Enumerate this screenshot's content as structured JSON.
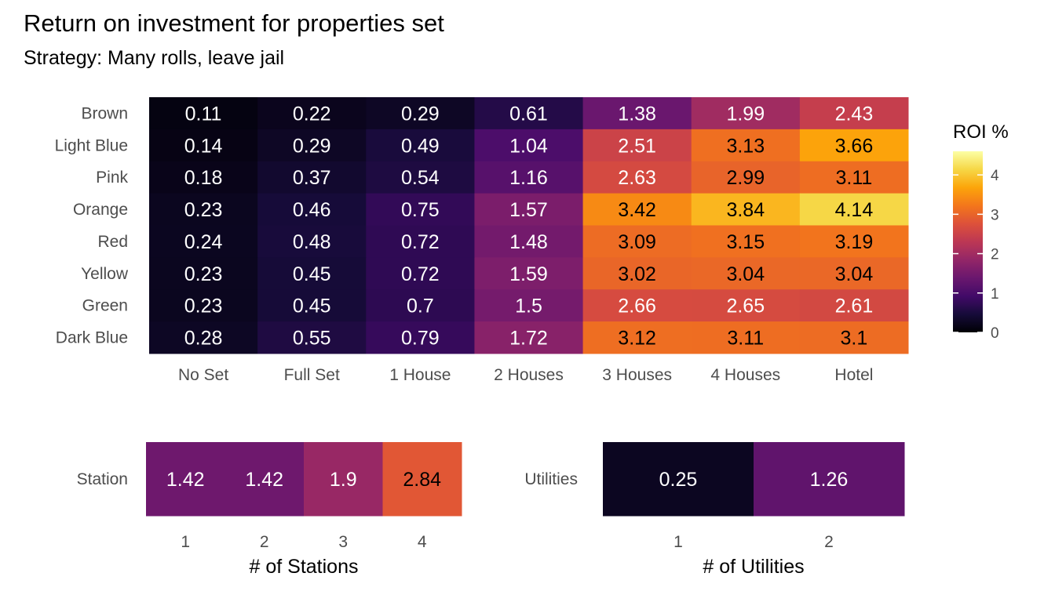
{
  "title": "Return on investment for properties set",
  "subtitle": "Strategy: Many rolls, leave jail",
  "chart_data": [
    {
      "type": "heatmap",
      "rows": [
        "Brown",
        "Light Blue",
        "Pink",
        "Orange",
        "Red",
        "Yellow",
        "Green",
        "Dark Blue"
      ],
      "columns": [
        "No Set",
        "Full Set",
        "1 House",
        "2 Houses",
        "3 Houses",
        "4 Houses",
        "Hotel"
      ],
      "values": [
        [
          0.11,
          0.22,
          0.29,
          0.61,
          1.38,
          1.99,
          2.43
        ],
        [
          0.14,
          0.29,
          0.49,
          1.04,
          2.51,
          3.13,
          3.66
        ],
        [
          0.18,
          0.37,
          0.54,
          1.16,
          2.63,
          2.99,
          3.11
        ],
        [
          0.23,
          0.46,
          0.75,
          1.57,
          3.42,
          3.84,
          4.14
        ],
        [
          0.24,
          0.48,
          0.72,
          1.48,
          3.09,
          3.15,
          3.19
        ],
        [
          0.23,
          0.45,
          0.72,
          1.59,
          3.02,
          3.04,
          3.04
        ],
        [
          0.23,
          0.45,
          0.7,
          1.5,
          2.66,
          2.65,
          2.61
        ],
        [
          0.28,
          0.55,
          0.79,
          1.72,
          3.12,
          3.11,
          3.1
        ]
      ],
      "value_labels": [
        [
          "0.11",
          "0.22",
          "0.29",
          "0.61",
          "1.38",
          "1.99",
          "2.43"
        ],
        [
          "0.14",
          "0.29",
          "0.49",
          "1.04",
          "2.51",
          "3.13",
          "3.66"
        ],
        [
          "0.18",
          "0.37",
          "0.54",
          "1.16",
          "2.63",
          "2.99",
          "3.11"
        ],
        [
          "0.23",
          "0.46",
          "0.75",
          "1.57",
          "3.42",
          "3.84",
          "4.14"
        ],
        [
          "0.24",
          "0.48",
          "0.72",
          "1.48",
          "3.09",
          "3.15",
          "3.19"
        ],
        [
          "0.23",
          "0.45",
          "0.72",
          "1.59",
          "3.02",
          "3.04",
          "3.04"
        ],
        [
          "0.23",
          "0.45",
          "0.7",
          "1.5",
          "2.66",
          "2.65",
          "2.61"
        ],
        [
          "0.28",
          "0.55",
          "0.79",
          "1.72",
          "3.12",
          "3.11",
          "3.1"
        ]
      ],
      "xlabel": "",
      "ylabel": ""
    },
    {
      "type": "heatmap",
      "rows": [
        "Station"
      ],
      "columns": [
        "1",
        "2",
        "3",
        "4"
      ],
      "values": [
        [
          1.42,
          1.42,
          1.9,
          2.84
        ]
      ],
      "value_labels": [
        [
          "1.42",
          "1.42",
          "1.9",
          "2.84"
        ]
      ],
      "xlabel": "# of Stations",
      "ylabel": ""
    },
    {
      "type": "heatmap",
      "rows": [
        "Utilities"
      ],
      "columns": [
        "1",
        "2"
      ],
      "values": [
        [
          0.25,
          1.26
        ]
      ],
      "value_labels": [
        [
          "0.25",
          "1.26"
        ]
      ],
      "xlabel": "# of Utilities",
      "ylabel": ""
    }
  ],
  "legend": {
    "title": "ROI %",
    "range": [
      0,
      4.6
    ],
    "ticks": [
      0,
      1,
      2,
      3,
      4
    ],
    "tick_labels": [
      "0",
      "1",
      "2",
      "3",
      "4"
    ],
    "placement": "right",
    "colormap": "inferno"
  },
  "label_colors": {
    "light": "#ffffff",
    "dark": "#000000"
  }
}
